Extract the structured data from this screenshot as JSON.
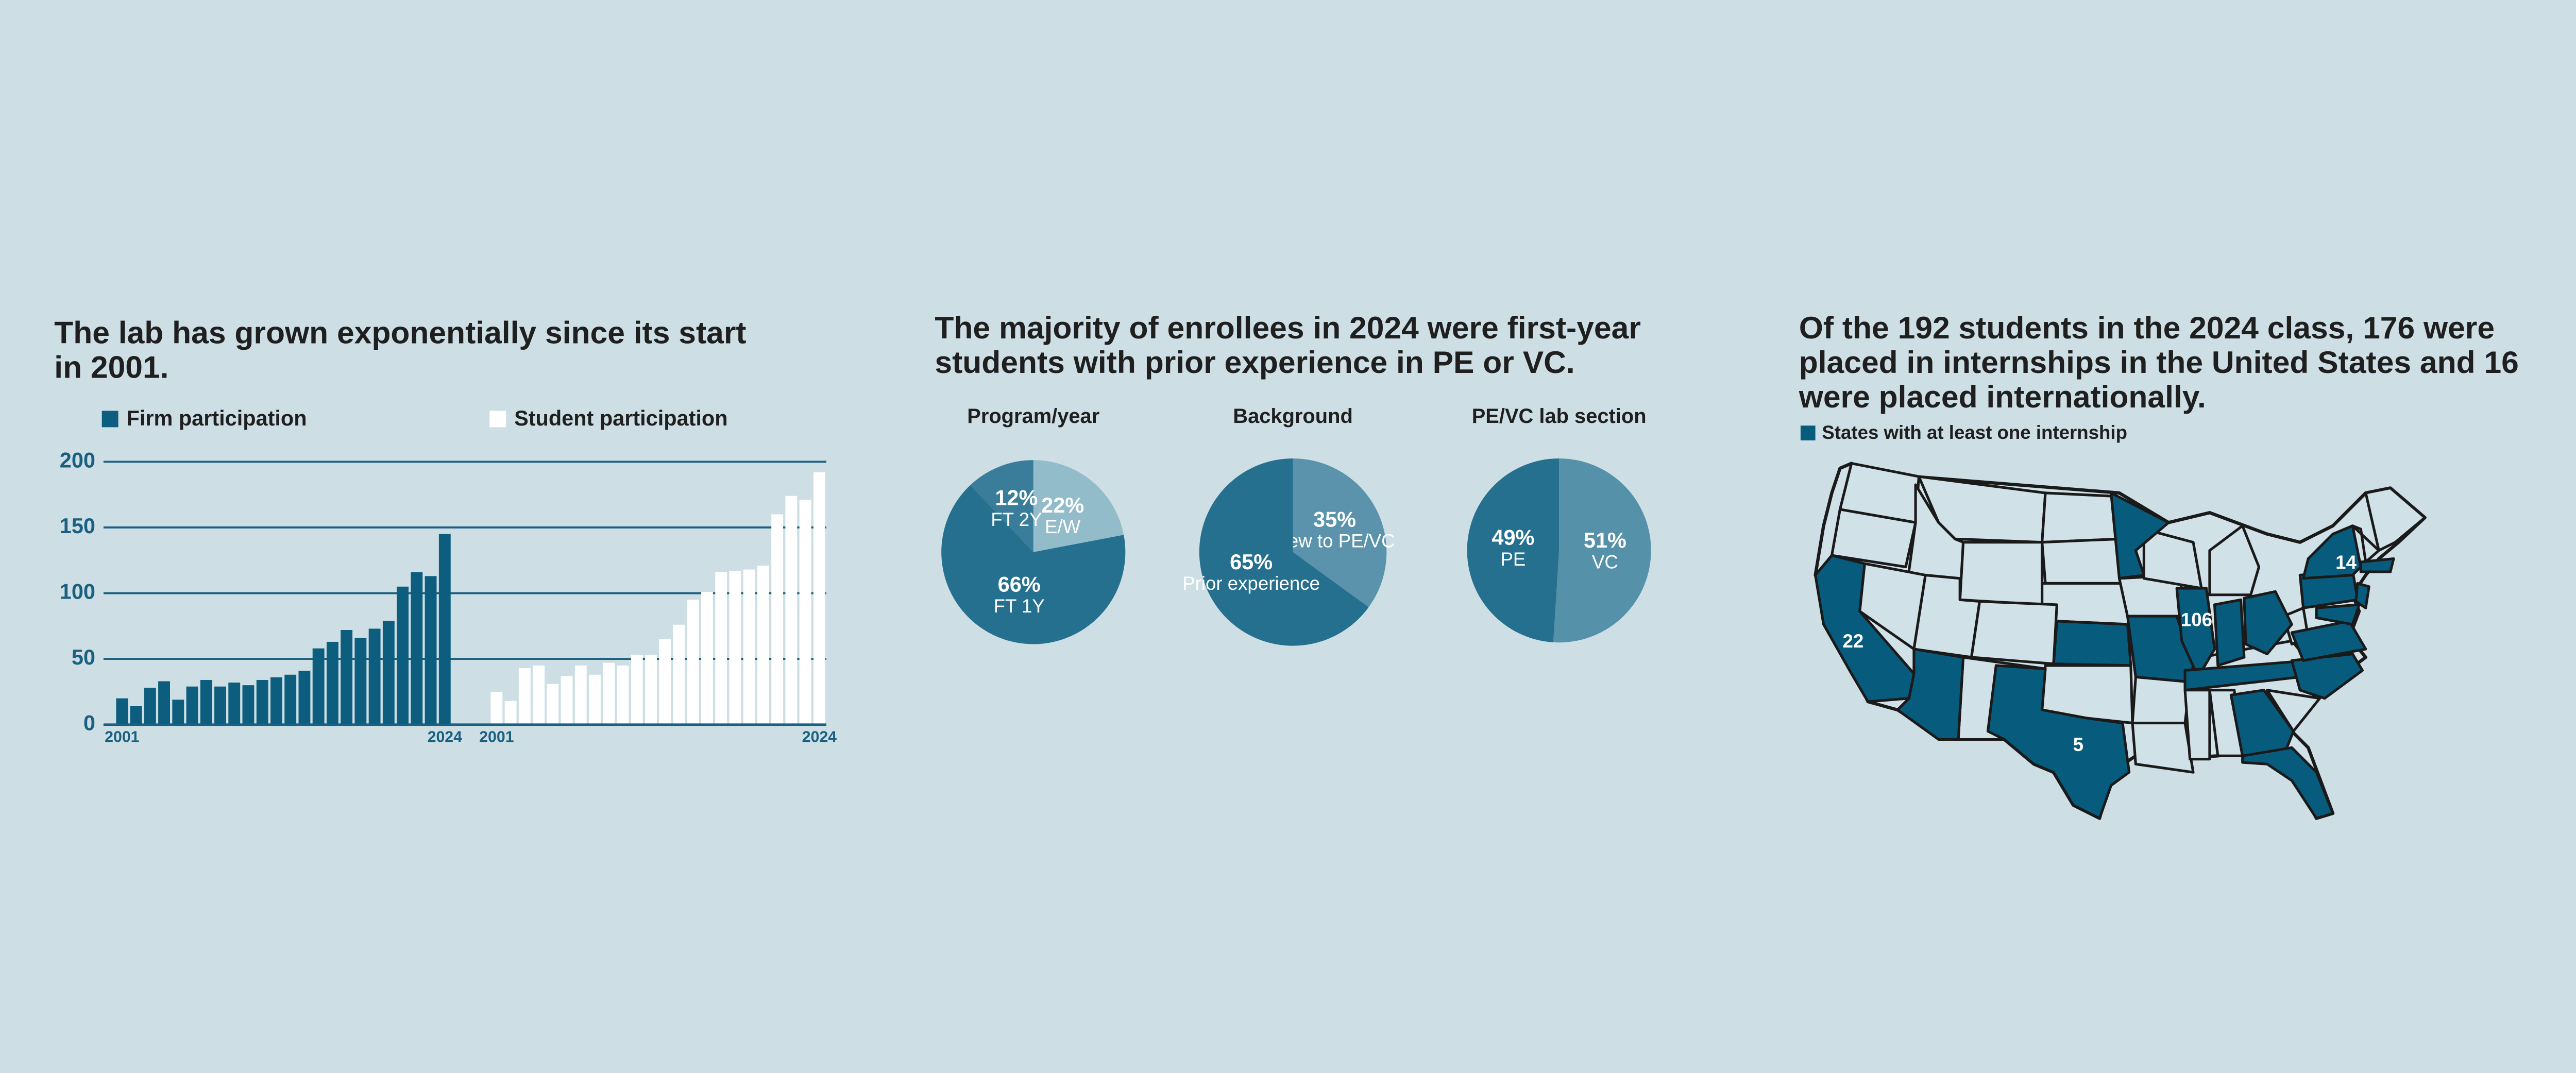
{
  "chart_data": [
    {
      "type": "bar",
      "title": "The lab has grown exponentially since its start in 2001.",
      "categories": [
        "2001",
        null,
        null,
        null,
        null,
        null,
        null,
        null,
        null,
        null,
        null,
        null,
        null,
        null,
        null,
        null,
        null,
        null,
        null,
        null,
        null,
        null,
        null,
        "2024"
      ],
      "series": [
        {
          "name": "Firm participation",
          "color": "#0d5d7e",
          "values": [
            20,
            14,
            28,
            33,
            19,
            29,
            34,
            29,
            32,
            30,
            34,
            36,
            38,
            41,
            58,
            63,
            72,
            66,
            73,
            79,
            105,
            116,
            113,
            145
          ]
        },
        {
          "name": "Student participation",
          "color": "#ffffff",
          "values": [
            25,
            18,
            43,
            45,
            31,
            37,
            45,
            38,
            47,
            45,
            53,
            53,
            65,
            76,
            95,
            101,
            116,
            117,
            118,
            121,
            160,
            174,
            171,
            192
          ]
        }
      ],
      "ylim": [
        0,
        200
      ],
      "yticks": [
        0,
        50,
        100,
        150,
        200
      ],
      "grid": true
    },
    {
      "type": "pie",
      "suptitle": "The majority of enrollees in 2024 were first-year students with prior experience in PE or VC.",
      "title": "Program/year",
      "categories": [
        "E/W",
        "FT 1Y",
        "FT 2Y"
      ],
      "values": [
        22,
        66,
        12
      ],
      "value_labels": [
        "22%",
        "66%",
        "12%"
      ],
      "colors": [
        "#93bccb",
        "#26708f",
        "#3a7d9a"
      ]
    },
    {
      "type": "pie",
      "title": "Background",
      "categories": [
        "New to PE/VC",
        "Prior experience"
      ],
      "values": [
        35,
        65
      ],
      "value_labels": [
        "35%",
        "65%"
      ],
      "colors": [
        "#5a93ab",
        "#26708f"
      ]
    },
    {
      "type": "pie",
      "title": "PE/VC lab section",
      "categories": [
        "VC",
        "PE"
      ],
      "values": [
        51,
        49
      ],
      "value_labels": [
        "51%",
        "49%"
      ],
      "colors": [
        "#5691aa",
        "#26708f"
      ]
    }
  ],
  "map": {
    "title": "Of the 192 students in the 2024 class, 176 were placed in internships in the United States and 16 were placed internationally.",
    "legend": "States with at least one internship",
    "color": "#075c7e",
    "values": [
      22,
      106,
      14,
      5
    ]
  }
}
